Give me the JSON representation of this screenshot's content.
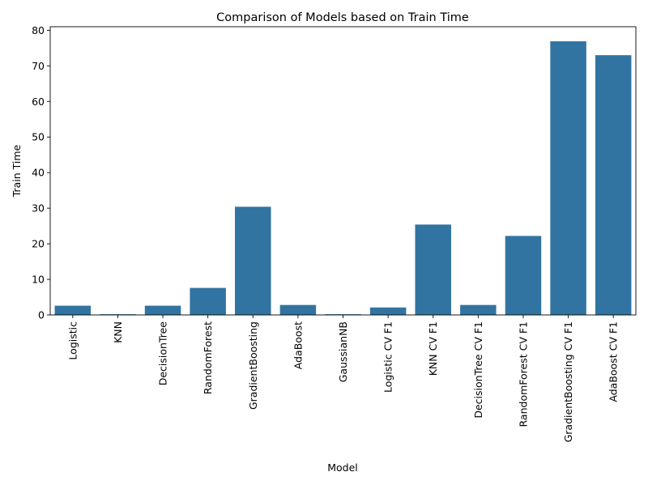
{
  "chart_data": {
    "type": "bar",
    "title": "Comparison of Models based on Train Time",
    "xlabel": "Model",
    "ylabel": "Train Time",
    "categories": [
      "Logistic",
      "KNN",
      "DecisionTree",
      "RandomForest",
      "GradientBoosting",
      "AdaBoost",
      "GaussianNB",
      "Logistic CV F1",
      "KNN CV F1",
      "DecisionTree CV F1",
      "RandomForest CV F1",
      "GradientBoosting CV F1",
      "AdaBoost CV F1"
    ],
    "values": [
      2.6,
      0.2,
      2.6,
      7.6,
      30.4,
      2.8,
      0.2,
      2.1,
      25.4,
      2.8,
      22.2,
      76.9,
      73.0
    ],
    "ylim": [
      0,
      81
    ],
    "yticks": [
      0,
      10,
      20,
      30,
      40,
      50,
      60,
      70,
      80
    ],
    "bar_color": "#3274a1",
    "grid": false,
    "legend": "none"
  }
}
